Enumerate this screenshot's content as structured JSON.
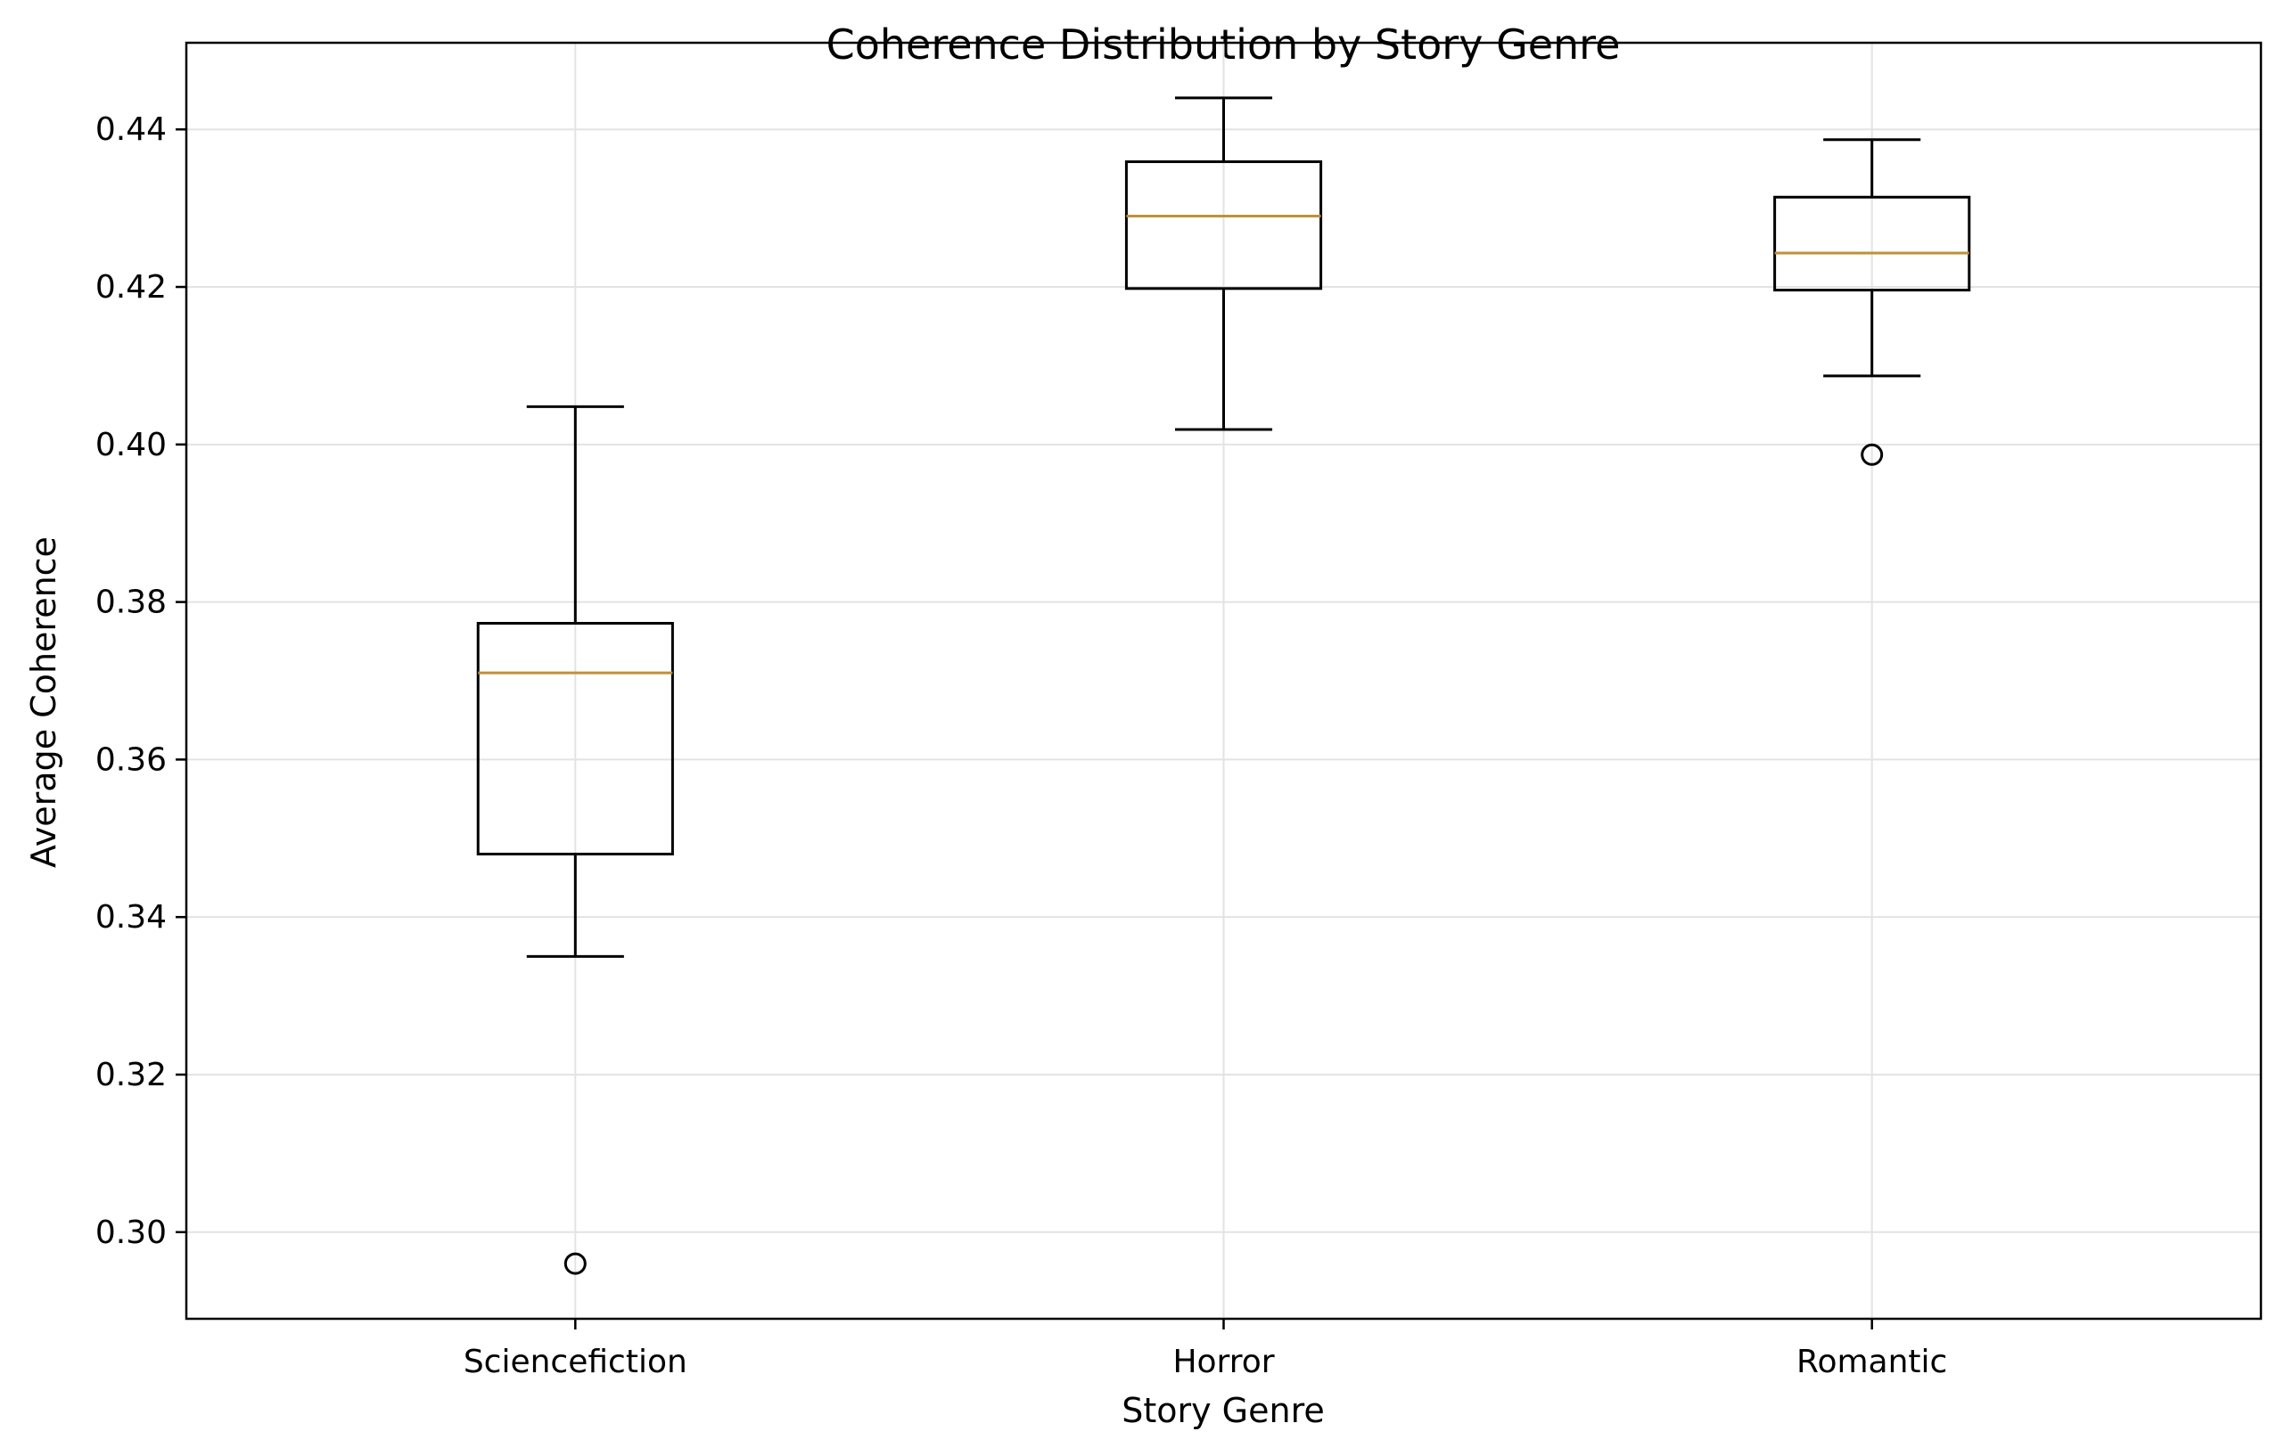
{
  "chart_data": {
    "type": "boxplot",
    "title": "Coherence Distribution by Story Genre",
    "xlabel": "Story Genre",
    "ylabel": "Average Coherence",
    "ylim": [
      0.289,
      0.451
    ],
    "yticks": [
      0.3,
      0.32,
      0.34,
      0.36,
      0.38,
      0.4,
      0.42,
      0.44
    ],
    "ytick_labels": [
      "0.30",
      "0.32",
      "0.34",
      "0.36",
      "0.38",
      "0.40",
      "0.42",
      "0.44"
    ],
    "grid": true,
    "categories": [
      "Sciencefiction",
      "Horror",
      "Romantic"
    ],
    "boxes": [
      {
        "whisker_low": 0.335,
        "q1": 0.348,
        "median": 0.371,
        "q3": 0.3773,
        "whisker_high": 0.4048,
        "outliers": [
          0.296
        ]
      },
      {
        "whisker_low": 0.4019,
        "q1": 0.4198,
        "median": 0.429,
        "q3": 0.4359,
        "whisker_high": 0.444,
        "outliers": []
      },
      {
        "whisker_low": 0.4087,
        "q1": 0.4196,
        "median": 0.4243,
        "q3": 0.4314,
        "whisker_high": 0.4387,
        "outliers": [
          0.3987
        ]
      }
    ],
    "colors": {
      "box": "#000000",
      "median": "#c0903a",
      "grid": "#e3e3e3",
      "axes": "#000000"
    }
  }
}
